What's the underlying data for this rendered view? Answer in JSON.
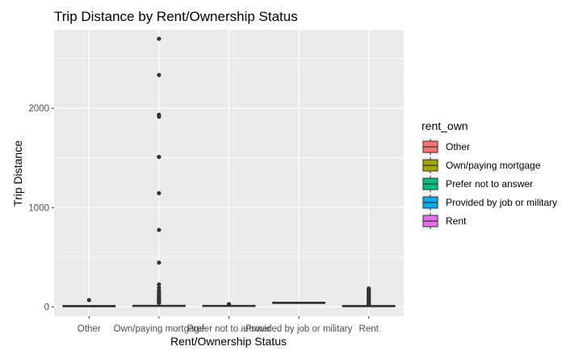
{
  "chart_data": {
    "type": "boxplot",
    "title": "Trip Distance by Rent/Ownership Status",
    "xlabel": "Rent/Ownership Status",
    "ylabel": "Trip Distance",
    "categories": [
      "Other",
      "Own/paying mortgage",
      "Prefer not to answer",
      "Provided by job or military",
      "Rent"
    ],
    "colors": [
      "#F8766D",
      "#A3A500",
      "#00BF7D",
      "#00B0F6",
      "#E76BF3"
    ],
    "ylim": [
      -95,
      2790
    ],
    "yticks": [
      0,
      1000,
      2000
    ],
    "ytick_labels": [
      "0",
      "1000",
      "2000"
    ],
    "grid": true,
    "legend": {
      "title": "rent_own",
      "position": "right",
      "entries": [
        "Other",
        "Own/paying mortgage",
        "Prefer not to answer",
        "Provided by job or military",
        "Rent"
      ]
    },
    "boxes": [
      {
        "category": "Other",
        "q1": 2,
        "median": 4,
        "q3": 6,
        "whisker_low": 0,
        "whisker_high": 10,
        "outliers": [
          68
        ]
      },
      {
        "category": "Own/paying mortgage",
        "q1": 3,
        "median": 8,
        "q3": 16,
        "whisker_low": 0,
        "whisker_high": 35,
        "outliers": [
          2700,
          2335,
          1935,
          1915,
          1510,
          1145,
          775,
          445,
          225,
          190,
          160,
          140,
          120,
          105,
          95,
          85,
          75,
          65,
          58,
          52,
          47,
          43,
          40
        ]
      },
      {
        "category": "Prefer not to answer",
        "q1": 3,
        "median": 7,
        "q3": 14,
        "whisker_low": 0,
        "whisker_high": 20,
        "outliers": [
          27
        ]
      },
      {
        "category": "Provided by job or military",
        "q1": 35,
        "median": 37,
        "q3": 39,
        "whisker_low": 35,
        "whisker_high": 39,
        "outliers": []
      },
      {
        "category": "Rent",
        "q1": 2,
        "median": 5,
        "q3": 8,
        "whisker_low": 0,
        "whisker_high": 20,
        "outliers": [
          185,
          175,
          165,
          155,
          145,
          135,
          125,
          115,
          105,
          95,
          85,
          75,
          65,
          55,
          45,
          38,
          32,
          27,
          24
        ]
      }
    ]
  }
}
